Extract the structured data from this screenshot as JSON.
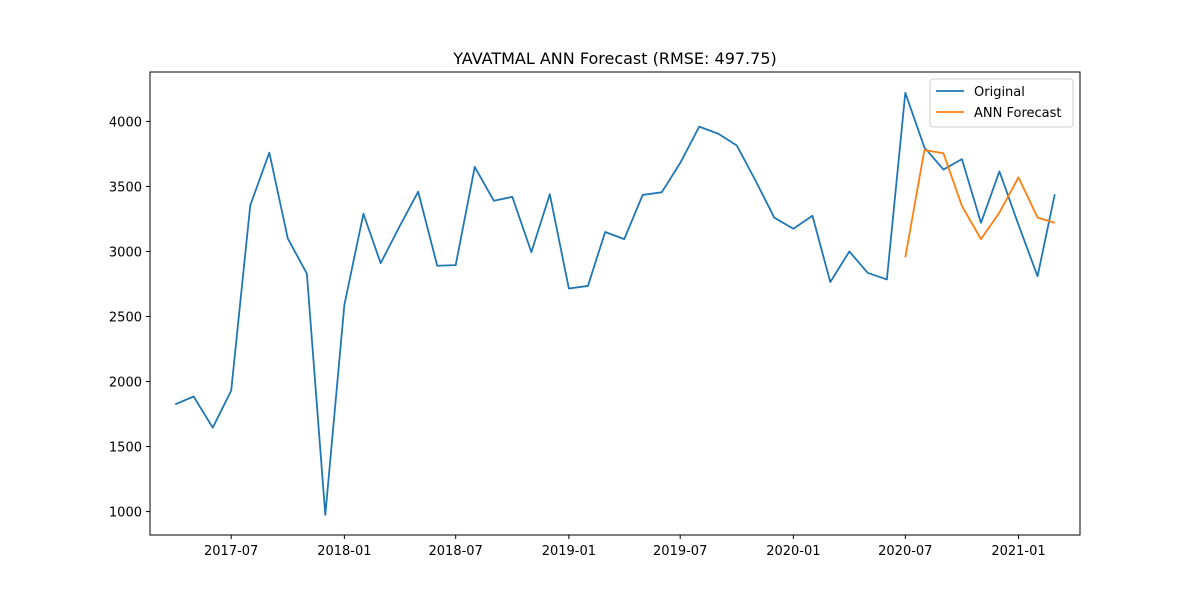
{
  "chart_data": {
    "type": "line",
    "title": "YAVATMAL ANN Forecast (RMSE: 497.75)",
    "xlabel": "",
    "ylabel": "",
    "xlim": [
      "2017-02-19",
      "2021-04-11"
    ],
    "ylim": [
      820,
      4380
    ],
    "x_ticks": [
      "2017-07-01",
      "2018-01-01",
      "2018-07-01",
      "2019-01-01",
      "2019-07-01",
      "2020-01-01",
      "2020-07-01",
      "2021-01-01"
    ],
    "x_tick_labels": [
      "2017-07",
      "2018-01",
      "2018-07",
      "2019-01",
      "2019-07",
      "2020-01",
      "2020-07",
      "2021-01"
    ],
    "y_ticks": [
      1000,
      1500,
      2000,
      2500,
      3000,
      3500,
      4000
    ],
    "y_tick_labels": [
      "1000",
      "1500",
      "2000",
      "2500",
      "3000",
      "3500",
      "4000"
    ],
    "grid": false,
    "legend_position": "top-right",
    "series": [
      {
        "name": "Original",
        "color": "#1f77b4",
        "x": [
          "2017-04-01",
          "2017-05-01",
          "2017-06-01",
          "2017-07-01",
          "2017-08-01",
          "2017-09-01",
          "2017-10-01",
          "2017-11-01",
          "2017-12-01",
          "2018-01-01",
          "2018-02-01",
          "2018-03-01",
          "2018-04-01",
          "2018-05-01",
          "2018-06-01",
          "2018-07-01",
          "2018-08-01",
          "2018-09-01",
          "2018-10-01",
          "2018-11-01",
          "2018-12-01",
          "2019-01-01",
          "2019-02-01",
          "2019-03-01",
          "2019-04-01",
          "2019-05-01",
          "2019-06-01",
          "2019-07-01",
          "2019-08-01",
          "2019-09-01",
          "2019-10-01",
          "2019-11-01",
          "2019-12-01",
          "2020-01-01",
          "2020-02-01",
          "2020-03-01",
          "2020-04-01",
          "2020-05-01",
          "2020-06-01",
          "2020-07-01",
          "2020-08-01",
          "2020-09-01",
          "2020-10-01",
          "2020-11-01",
          "2020-12-01",
          "2021-01-01",
          "2021-02-01",
          "2021-03-01"
        ],
        "values": [
          1825,
          1885,
          1645,
          1930,
          3355,
          3760,
          3100,
          2830,
          975,
          2590,
          3290,
          2910,
          3195,
          3460,
          2890,
          2895,
          3650,
          3390,
          3420,
          2995,
          3440,
          2715,
          2735,
          3150,
          3095,
          3435,
          3455,
          3680,
          3960,
          3905,
          3815,
          3540,
          3260,
          3175,
          3275,
          2765,
          3000,
          2835,
          2785,
          4220,
          3800,
          3630,
          3710,
          3220,
          3615,
          3205,
          2810,
          3440
        ]
      },
      {
        "name": "ANN Forecast",
        "color": "#ff7f0e",
        "x": [
          "2020-07-01",
          "2020-08-01",
          "2020-09-01",
          "2020-10-01",
          "2020-11-01",
          "2020-12-01",
          "2021-01-01",
          "2021-02-01",
          "2021-03-01"
        ],
        "values": [
          2955,
          3780,
          3755,
          3350,
          3095,
          3300,
          3570,
          3260,
          3220
        ]
      }
    ]
  }
}
